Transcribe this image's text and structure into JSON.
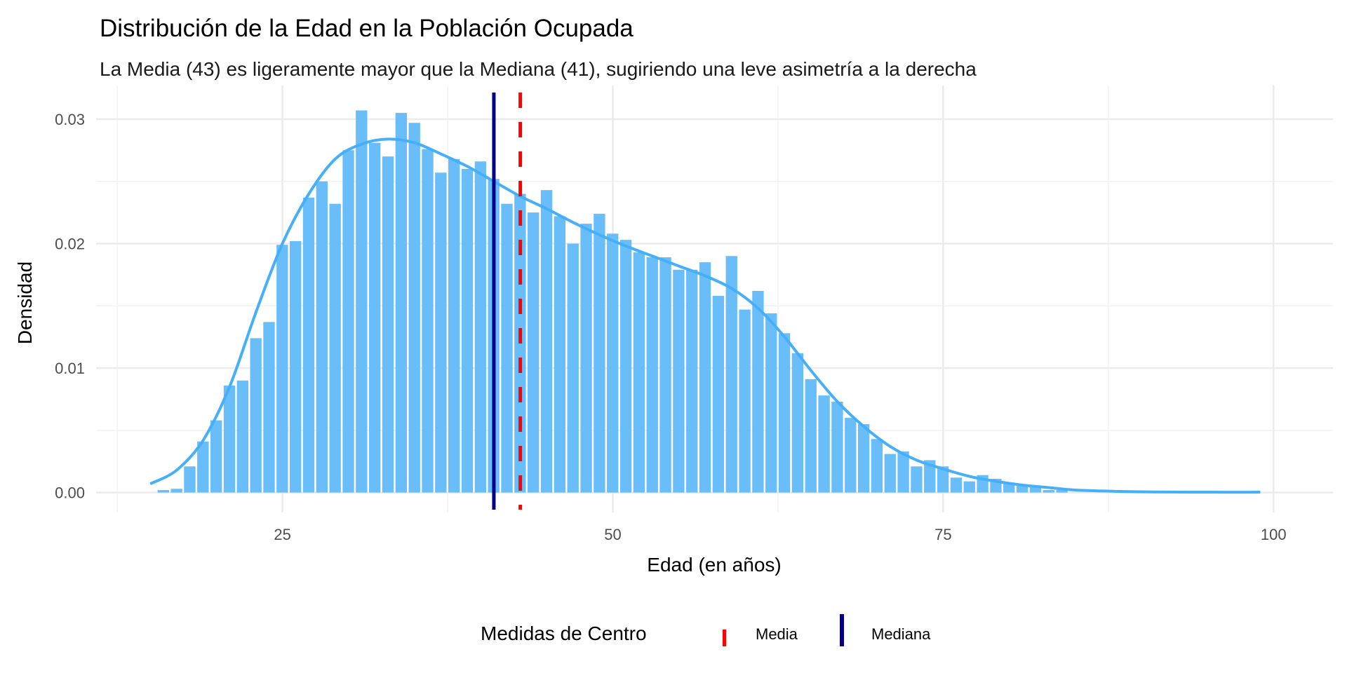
{
  "chart_data": {
    "type": "histogram",
    "title": "Distribución de la Edad en la Población Ocupada",
    "subtitle": "La Media (43) es ligeramente mayor que la Mediana (41), sugiriendo una leve asimetría a la derecha",
    "xlabel": "Edad (en años)",
    "ylabel": "Densidad",
    "xlim": [
      10.9,
      104.5
    ],
    "ylim": [
      -0.0016,
      0.0327
    ],
    "x_ticks": [
      {
        "value": 25,
        "label": "25"
      },
      {
        "value": 50,
        "label": "50"
      },
      {
        "value": 75,
        "label": "75"
      },
      {
        "value": 100,
        "label": "100"
      }
    ],
    "y_ticks": [
      {
        "value": 0,
        "label": "0.00"
      },
      {
        "value": 0.01,
        "label": "0.01"
      },
      {
        "value": 0.02,
        "label": "0.02"
      },
      {
        "value": 0.03,
        "label": "0.03"
      }
    ],
    "grid": true,
    "bin_width": 1,
    "bars": {
      "ages": [
        16,
        17,
        18,
        19,
        20,
        21,
        22,
        23,
        24,
        25,
        26,
        27,
        28,
        29,
        30,
        31,
        32,
        33,
        34,
        35,
        36,
        37,
        38,
        39,
        40,
        41,
        42,
        43,
        44,
        45,
        46,
        47,
        48,
        49,
        50,
        51,
        52,
        53,
        54,
        55,
        56,
        57,
        58,
        59,
        60,
        61,
        62,
        63,
        64,
        65,
        66,
        67,
        68,
        69,
        70,
        71,
        72,
        73,
        74,
        75,
        76,
        77,
        78,
        79,
        80,
        81,
        82,
        83,
        84
      ],
      "density": [
        0.0002,
        0.0003,
        0.0021,
        0.0041,
        0.0058,
        0.0086,
        0.009,
        0.0124,
        0.0137,
        0.0199,
        0.0202,
        0.0237,
        0.025,
        0.0232,
        0.0275,
        0.0307,
        0.0281,
        0.027,
        0.0305,
        0.0297,
        0.0276,
        0.0257,
        0.0268,
        0.026,
        0.0266,
        0.0252,
        0.0232,
        0.024,
        0.0225,
        0.0243,
        0.0222,
        0.02,
        0.0216,
        0.0224,
        0.0208,
        0.0203,
        0.0193,
        0.0189,
        0.0189,
        0.0179,
        0.0179,
        0.0185,
        0.0158,
        0.019,
        0.0147,
        0.0162,
        0.0144,
        0.0128,
        0.0112,
        0.0091,
        0.0078,
        0.0073,
        0.006,
        0.0055,
        0.0043,
        0.0031,
        0.0033,
        0.0021,
        0.0026,
        0.0021,
        0.0012,
        0.0009,
        0.0014,
        0.0011,
        0.0008,
        0.0006,
        0.0005,
        0.0002,
        0.0002
      ]
    },
    "density_curve": {
      "x": [
        15,
        17,
        19,
        21,
        23,
        25,
        27,
        29,
        31,
        33,
        35,
        37,
        39,
        41,
        43,
        45,
        47,
        49,
        51,
        53,
        55,
        57,
        59,
        61,
        63,
        65,
        67,
        69,
        71,
        73,
        75,
        77,
        79,
        81,
        83,
        85,
        88,
        91,
        95,
        99
      ],
      "y": [
        0.0007,
        0.0018,
        0.0042,
        0.0085,
        0.0145,
        0.02,
        0.024,
        0.0268,
        0.028,
        0.0284,
        0.0281,
        0.0272,
        0.0262,
        0.025,
        0.0238,
        0.0228,
        0.0217,
        0.0207,
        0.0198,
        0.019,
        0.0182,
        0.0174,
        0.0164,
        0.0148,
        0.0125,
        0.0098,
        0.0073,
        0.0053,
        0.0037,
        0.0026,
        0.0019,
        0.0013,
        0.0009,
        0.0006,
        0.0004,
        0.0002,
        0.0001,
        5e-05,
        3e-05,
        3e-05
      ]
    },
    "vlines": [
      {
        "name": "Media",
        "value": 43,
        "style": "dashed",
        "color": "#FF0000"
      },
      {
        "name": "Mediana",
        "value": 41,
        "style": "solid",
        "color": "#00008B"
      }
    ],
    "legend": {
      "title": "Medidas de Centro",
      "position": "bottom",
      "entries": [
        {
          "label": "Media",
          "color": "#FF0000"
        },
        {
          "label": "Mediana",
          "color": "#00008B"
        }
      ]
    },
    "colors": {
      "bar": "#69BDF9",
      "curve": "#45AFFA",
      "grid_major": "#EBEBEB",
      "grid_minor": "#F2F2F2"
    }
  }
}
